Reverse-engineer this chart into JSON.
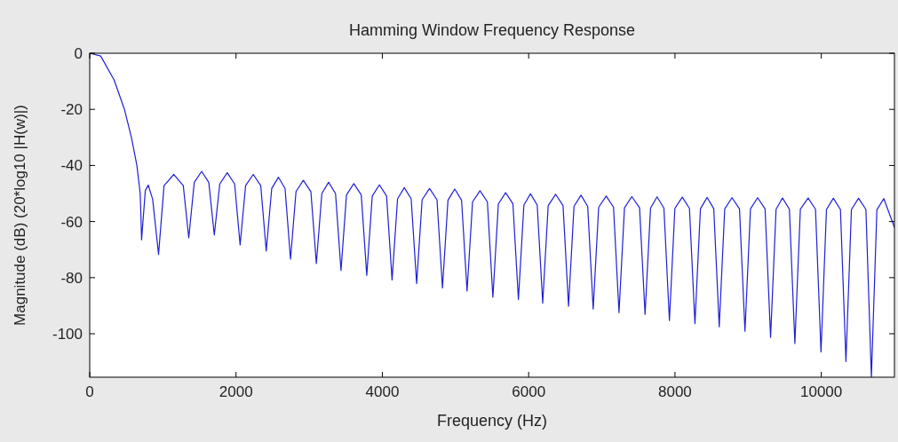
{
  "chart_data": {
    "type": "line",
    "title": "Hamming Window Frequency Response",
    "xlabel": "Frequency (Hz)",
    "ylabel": "Magnitude (dB) (20*log10 |H(w)|)",
    "x": [
      0,
      150,
      333,
      475,
      570,
      645,
      690,
      700,
      709,
      760,
      800,
      860,
      941,
      1016,
      1150,
      1279,
      1354,
      1429,
      1530,
      1628,
      1703,
      1778,
      1880,
      1981,
      2056,
      2131,
      2235,
      2338,
      2413,
      2488,
      2580,
      2670,
      2745,
      2820,
      2920,
      3023,
      3098,
      3173,
      3265,
      3360,
      3435,
      3510,
      3610,
      3712,
      3787,
      3862,
      3960,
      4058,
      4133,
      4208,
      4300,
      4394,
      4469,
      4544,
      4645,
      4747,
      4822,
      4897,
      4990,
      5083,
      5158,
      5233,
      5335,
      5436,
      5511,
      5586,
      5685,
      5785,
      5860,
      5935,
      6025,
      6117,
      6192,
      6267,
      6370,
      6470,
      6545,
      6620,
      6715,
      6807,
      6882,
      6957,
      7060,
      7160,
      7235,
      7310,
      7410,
      7516,
      7591,
      7666,
      7755,
      7849,
      7924,
      7999,
      8100,
      8198,
      8273,
      8348,
      8440,
      8530,
      8605,
      8680,
      8780,
      8882,
      8957,
      9032,
      9130,
      9232,
      9307,
      9382,
      9470,
      9564,
      9639,
      9714,
      9820,
      9921,
      9996,
      10071,
      10165,
      10262,
      10337,
      10412,
      10510,
      10610,
      10685,
      10760,
      10855,
      11000
    ],
    "series": [
      {
        "color": "#1f1fd6",
        "values": [
          0,
          -1,
          -9.5,
          -20,
          -30,
          -40,
          -50,
          -58,
          -66.5,
          -49,
          -47,
          -52,
          -71.7,
          -47.2,
          -43.2,
          -47.2,
          -65.8,
          -46.1,
          -42.1,
          -46.1,
          -64.8,
          -46.6,
          -42.6,
          -46.6,
          -68.3,
          -47.2,
          -43.2,
          -47.2,
          -70.5,
          -48.2,
          -44.2,
          -48.2,
          -73.4,
          -49.3,
          -45.3,
          -49.3,
          -75,
          -50,
          -46,
          -50,
          -77.4,
          -50.5,
          -46.5,
          -50.5,
          -79.2,
          -50.9,
          -46.9,
          -50.9,
          -80.8,
          -51.9,
          -47.9,
          -51.9,
          -82.1,
          -52.2,
          -48.2,
          -52.2,
          -83.7,
          -52.4,
          -48.4,
          -52.4,
          -84.8,
          -53,
          -49,
          -53,
          -87,
          -53.7,
          -49.7,
          -53.7,
          -87.8,
          -54.1,
          -50.1,
          -54.1,
          -89.1,
          -54.3,
          -50.3,
          -54.3,
          -90.2,
          -54.6,
          -50.6,
          -54.6,
          -91.2,
          -54.9,
          -50.9,
          -54.9,
          -92.5,
          -55.1,
          -51.1,
          -55.1,
          -93.1,
          -55.2,
          -51.2,
          -55.2,
          -95.3,
          -55.3,
          -51.3,
          -55.3,
          -96.4,
          -55.4,
          -51.4,
          -55.4,
          -97.5,
          -55.5,
          -51.5,
          -55.5,
          -99.1,
          -55.5,
          -51.5,
          -55.5,
          -101.3,
          -55.6,
          -51.6,
          -55.6,
          -103.5,
          -55.6,
          -51.6,
          -55.6,
          -106.5,
          -55.7,
          -51.7,
          -55.7,
          -109.9,
          -55.7,
          -51.7,
          -55.7,
          -115.5,
          -55.8,
          -51.8,
          -62.1
        ]
      }
    ],
    "xlim": [
      0,
      11000
    ],
    "xticks": [
      0,
      2000,
      4000,
      6000,
      8000,
      10000
    ],
    "ylim": [
      -115.5,
      0
    ],
    "yticks": [
      -100,
      -80,
      -60,
      -40,
      -20,
      0
    ],
    "grid": false,
    "marker": "none",
    "line_style": "solid"
  }
}
